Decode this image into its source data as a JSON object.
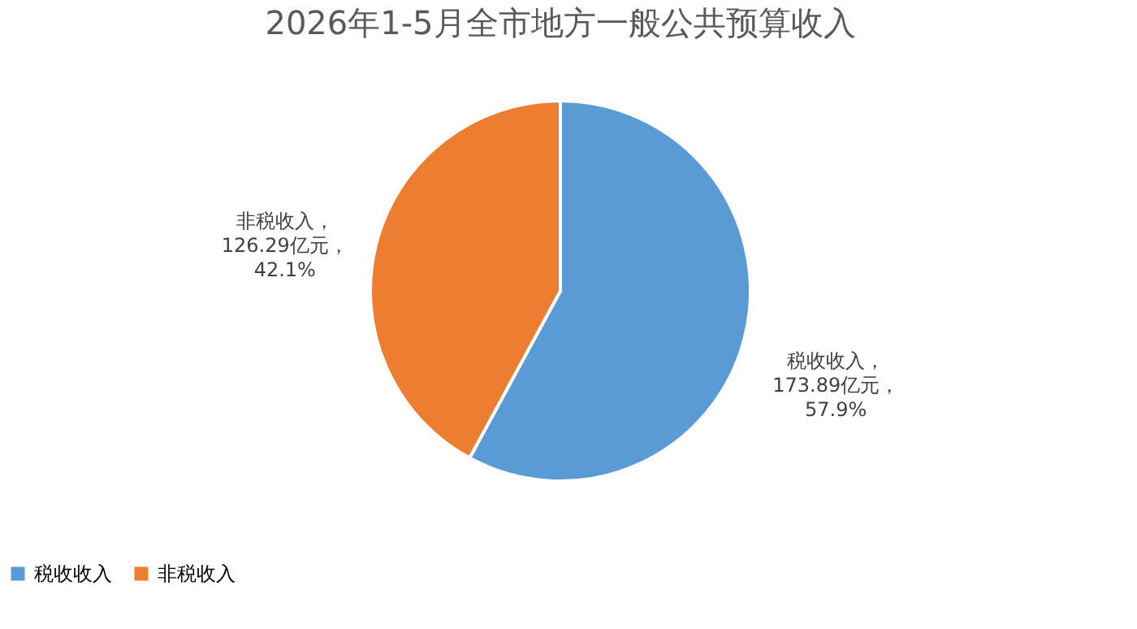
{
  "chart_data": {
    "type": "pie",
    "title": "2026年1-5月全市地方一般公共预算收入",
    "categories": [
      "税收收入",
      "非税收入"
    ],
    "values": [
      173.89,
      126.29
    ],
    "colors": [
      "#5b9bd5",
      "#ed7d31"
    ],
    "value_labels": [
      "税收收入，\n173.89亿元，\n57.9%",
      "非税收入，\n126.29亿元，\n42.1%"
    ],
    "legend": "bottom"
  }
}
